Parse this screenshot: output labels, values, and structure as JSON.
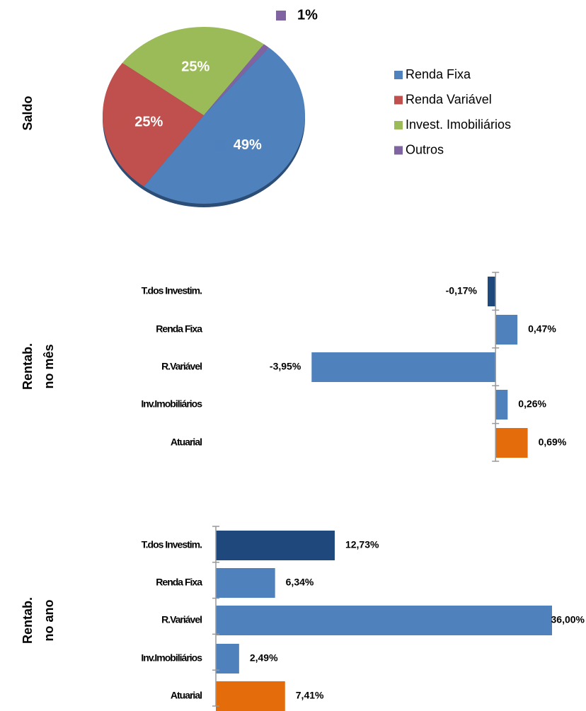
{
  "chart_data": [
    {
      "type": "pie",
      "ylabel": "Saldo",
      "categories": [
        "Renda Fixa",
        "Renda Variável",
        "Invest. Imobiliários",
        "Outros"
      ],
      "values": [
        49,
        25,
        25,
        1
      ],
      "value_labels": [
        "49%",
        "25%",
        "25%",
        "1%"
      ],
      "colors": [
        "#4f81bd",
        "#c0504d",
        "#9bbb59",
        "#8064a2"
      ],
      "legend": "right"
    },
    {
      "type": "barh",
      "ylabel": [
        "Rentab.",
        "no mês"
      ],
      "categories": [
        "T.dos Investim.",
        "Renda Fixa",
        "R.Variável",
        "Inv.Imobiliários",
        "Atuarial"
      ],
      "values": [
        -0.17,
        0.47,
        -3.95,
        0.26,
        0.69
      ],
      "value_labels": [
        "-0,17%",
        "0,47%",
        "-3,95%",
        "0,26%",
        "0,69%"
      ],
      "colors": [
        "#1f497d",
        "#4f81bd",
        "#4f81bd",
        "#4f81bd",
        "#e46c0a"
      ],
      "xlim": [
        -4,
        1
      ]
    },
    {
      "type": "barh",
      "ylabel": [
        "Rentab.",
        "no ano"
      ],
      "categories": [
        "T.dos Investim.",
        "Renda Fixa",
        "R.Variável",
        "Inv.Imobiliários",
        "Atuarial"
      ],
      "values": [
        12.73,
        6.34,
        36.0,
        2.49,
        7.41
      ],
      "value_labels": [
        "12,73%",
        "6,34%",
        "36,00%",
        "2,49%",
        "7,41%"
      ],
      "colors": [
        "#1f497d",
        "#4f81bd",
        "#4f81bd",
        "#4f81bd",
        "#e46c0a"
      ],
      "xlim": [
        0,
        36
      ]
    }
  ]
}
